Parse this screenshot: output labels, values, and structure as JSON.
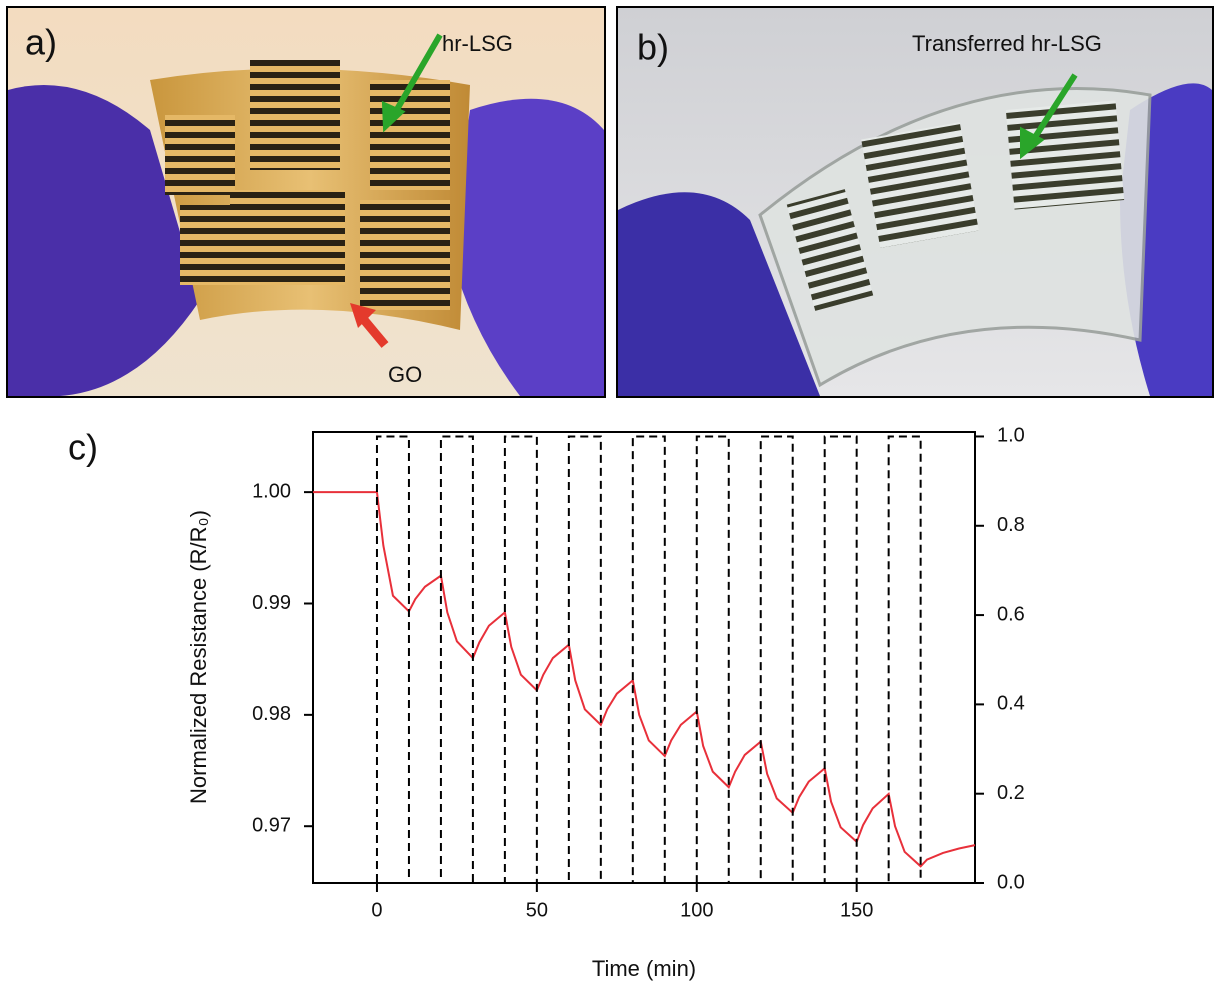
{
  "panels": [
    {
      "label": "a)",
      "annotations": [
        "hr-LSG",
        "GO"
      ]
    },
    {
      "label": "b)",
      "annotations": [
        "Transferred hr-LSG"
      ]
    }
  ],
  "chart_data": {
    "type": "line",
    "panel_label": "c)",
    "x_label": "Time (min)",
    "y_label": "Normalized Resistance (R/R₀)",
    "xlim": [
      -20,
      187
    ],
    "xticks": [
      0,
      50,
      100,
      150
    ],
    "ylim": [
      0.9649,
      1.0054
    ],
    "yticks": [
      0.97,
      0.98,
      0.99,
      {
        "value": 1,
        "label": "1.00"
      }
    ],
    "y2lim": [
      0,
      1.01
    ],
    "y2ticks": [
      {
        "value": 0,
        "label": "0.0"
      },
      0.2,
      0.4,
      0.6,
      0.8,
      {
        "value": 1,
        "label": "1.0"
      }
    ],
    "series": [
      {
        "color": "#e8303a",
        "dashed": false,
        "x": [
          -20,
          0,
          2,
          5,
          10,
          12,
          15,
          20,
          22,
          25,
          30,
          32,
          35,
          40,
          42,
          45,
          50,
          52,
          55,
          60,
          62,
          65,
          70,
          72,
          75,
          80,
          82,
          85,
          90,
          92,
          95,
          100,
          102,
          105,
          110,
          112,
          115,
          120,
          122,
          125,
          130,
          132,
          135,
          140,
          142,
          145,
          150,
          152,
          155,
          160,
          162,
          165,
          170,
          172,
          177,
          182,
          187
        ],
        "values": [
          1.0,
          1.0,
          0.9952,
          0.9907,
          0.9893,
          0.9904,
          0.9915,
          0.9925,
          0.9892,
          0.9866,
          0.9851,
          0.9865,
          0.988,
          0.9892,
          0.9861,
          0.9836,
          0.9822,
          0.9836,
          0.9851,
          0.9863,
          0.9831,
          0.9805,
          0.9791,
          0.9805,
          0.9819,
          0.9831,
          0.98,
          0.9777,
          0.9763,
          0.9777,
          0.9791,
          0.9803,
          0.9772,
          0.9749,
          0.9735,
          0.9749,
          0.9764,
          0.9776,
          0.9747,
          0.9725,
          0.9712,
          0.9726,
          0.974,
          0.9752,
          0.9722,
          0.9699,
          0.9686,
          0.9701,
          0.9716,
          0.9729,
          0.97,
          0.9677,
          0.9664,
          0.967,
          0.9676,
          0.968,
          0.9683
        ]
      },
      {
        "color": "#000000",
        "dashed": true,
        "axis": "y2",
        "x": [
          -20,
          0,
          0,
          10,
          10,
          20,
          20,
          30,
          30,
          40,
          40,
          50,
          50,
          60,
          60,
          70,
          70,
          80,
          80,
          90,
          90,
          100,
          100,
          110,
          110,
          120,
          120,
          130,
          130,
          140,
          140,
          150,
          150,
          160,
          160,
          170,
          170,
          187
        ],
        "values": [
          0,
          0,
          1,
          1,
          0,
          0,
          1,
          1,
          0,
          0,
          1,
          1,
          0,
          0,
          1,
          1,
          0,
          0,
          1,
          1,
          0,
          0,
          1,
          1,
          0,
          0,
          1,
          1,
          0,
          0,
          1,
          1,
          0,
          0,
          1,
          1,
          0,
          0
        ]
      }
    ]
  }
}
